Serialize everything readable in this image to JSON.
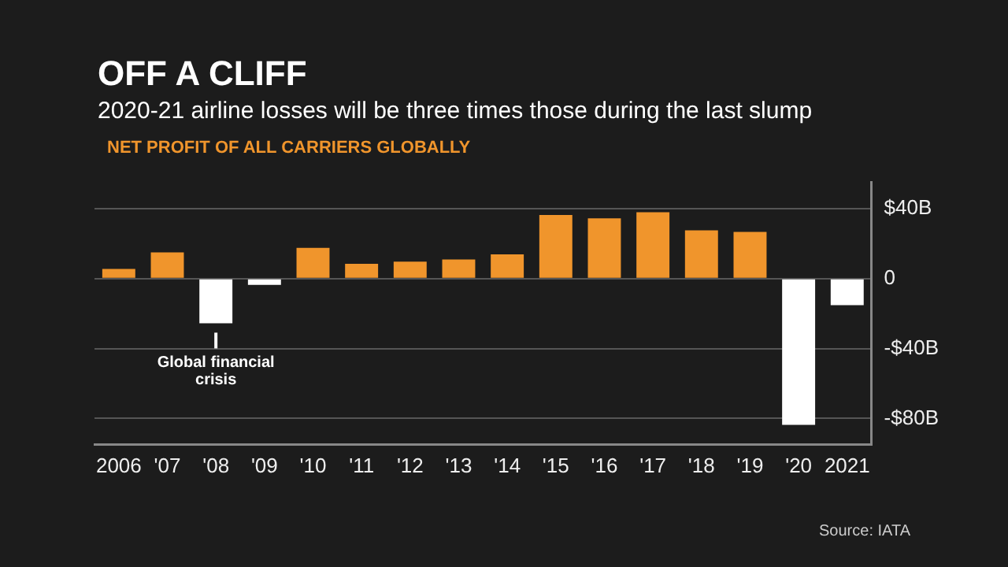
{
  "chart_data": {
    "type": "bar",
    "title": "OFF A CLIFF",
    "subtitle": "2020-21 airline losses will be three times those during the last slump",
    "ylabel": "NET PROFIT OF ALL CARRIERS GLOBALLY",
    "categories": [
      "2006",
      "'07",
      "'08",
      "'09",
      "'10",
      "'11",
      "'12",
      "'13",
      "'14",
      "'15",
      "'16",
      "'17",
      "'18",
      "'19",
      "'20",
      "2021"
    ],
    "values": [
      5.5,
      15,
      -25.5,
      -3.6,
      17.6,
      8.5,
      9.7,
      10.9,
      13.9,
      36.4,
      34.5,
      37.9,
      27.6,
      26.7,
      -83.6,
      -15.2
    ],
    "colors": [
      "#f0952c",
      "#f0952c",
      "#ffffff",
      "#ffffff",
      "#f0952c",
      "#f0952c",
      "#f0952c",
      "#f0952c",
      "#f0952c",
      "#f0952c",
      "#f0952c",
      "#f0952c",
      "#f0952c",
      "#f0952c",
      "#ffffff",
      "#ffffff"
    ],
    "ylim": [
      -95,
      55
    ],
    "yticks": [
      {
        "value": 40,
        "label": "$40B"
      },
      0,
      {
        "value": -40,
        "label": "-$40B"
      },
      {
        "value": -80,
        "label": "-$80B"
      }
    ],
    "grid": "y",
    "annotations": [
      {
        "text": "Global financial crisis",
        "x": "'08",
        "y": -25.5
      },
      "Source: IATA"
    ]
  }
}
